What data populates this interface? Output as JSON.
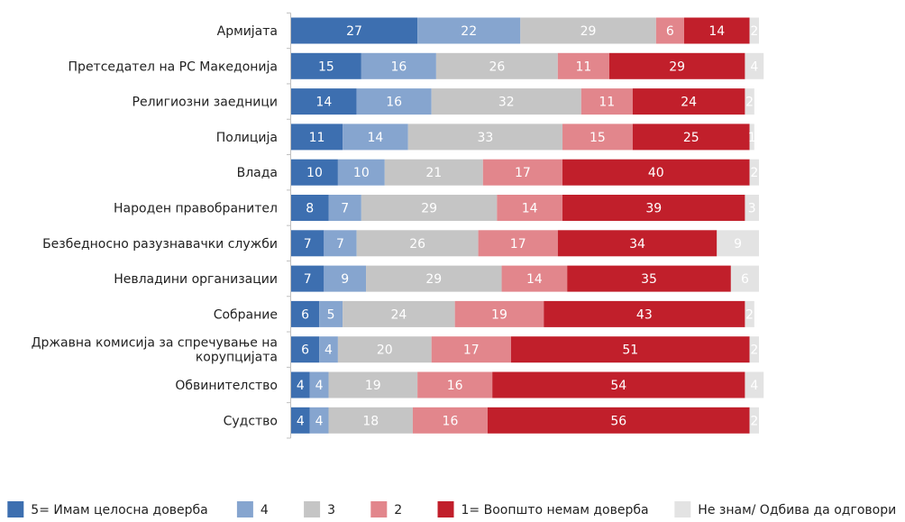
{
  "chart_data": {
    "type": "bar",
    "orientation": "horizontal",
    "stacked": true,
    "legend_position": "bottom",
    "grid": false,
    "xlim": [
      0,
      100
    ],
    "categories": [
      "Армијата",
      "Претседател на РС Македонија",
      "Религиозни заедници",
      "Полиција",
      "Влада",
      "Народен правобранител",
      "Безбедносно разузнавачки служби",
      "Невладини организации",
      "Собрание",
      "Државна комисија за спречување на корупцијата",
      "Обвинителство",
      "Судство"
    ],
    "category_lines": [
      [
        "Армијата"
      ],
      [
        "Претседател на РС Македонија"
      ],
      [
        "Религиозни заедници"
      ],
      [
        "Полиција"
      ],
      [
        "Влада"
      ],
      [
        "Народен правобранител"
      ],
      [
        "Безбедносно разузнавачки служби"
      ],
      [
        "Невладини организации"
      ],
      [
        "Собрание"
      ],
      [
        "Државна комисија за спречување на",
        "корупцијата"
      ],
      [
        "Обвинителство"
      ],
      [
        "Судство"
      ]
    ],
    "series": [
      {
        "name": "5= Имам целосна доверба",
        "color": "#3d6fb0",
        "label_color": "#ffffff",
        "values": [
          27,
          15,
          14,
          11,
          10,
          8,
          7,
          7,
          6,
          6,
          4,
          4
        ]
      },
      {
        "name": "4",
        "color": "#86a5cf",
        "label_color": "#ffffff",
        "values": [
          22,
          16,
          16,
          14,
          10,
          7,
          7,
          9,
          5,
          4,
          4,
          4
        ]
      },
      {
        "name": "3",
        "color": "#c5c5c5",
        "label_color": "#ffffff",
        "values": [
          29,
          26,
          32,
          33,
          21,
          29,
          26,
          29,
          24,
          20,
          19,
          18
        ]
      },
      {
        "name": "2",
        "color": "#e2868c",
        "label_color": "#ffffff",
        "values": [
          6,
          11,
          11,
          15,
          17,
          14,
          17,
          14,
          19,
          17,
          16,
          16
        ]
      },
      {
        "name": "1= Воопшто немам доверба",
        "color": "#c11f2b",
        "label_color": "#ffffff",
        "values": [
          14,
          29,
          24,
          25,
          40,
          39,
          34,
          35,
          43,
          51,
          54,
          56
        ]
      },
      {
        "name": "Не знам/ Одбива да одговори",
        "color": "#e3e3e3",
        "label_color": "#ffffff",
        "values": [
          2,
          4,
          2,
          1,
          2,
          3,
          9,
          6,
          2,
          2,
          4,
          2
        ]
      }
    ]
  }
}
